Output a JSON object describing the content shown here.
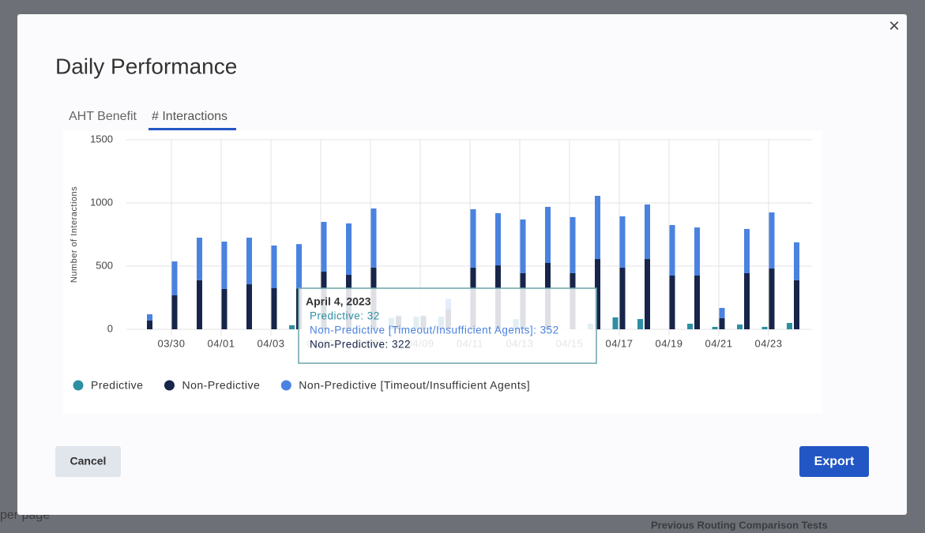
{
  "background": {
    "footer_left": "per page",
    "footer_right": "Previous Routing Comparison Tests"
  },
  "modal": {
    "title": "Daily Performance",
    "tabs": [
      "AHT Benefit",
      "# Interactions"
    ],
    "close": "×",
    "buttons": {
      "cancel": "Cancel",
      "export": "Export"
    }
  },
  "chart_data": {
    "type": "bar",
    "stacked": true,
    "y_label": "Number of Interactions",
    "categories": [
      null,
      "03/30",
      null,
      "04/01",
      null,
      "04/03",
      null,
      "04/05",
      null,
      "04/07",
      null,
      "04/09",
      null,
      "04/11",
      null,
      "04/13",
      null,
      "04/15",
      null,
      "04/17",
      null,
      "04/19",
      null,
      "04/21",
      null,
      "04/23",
      null
    ],
    "series": [
      {
        "name": "Predictive",
        "color": "#2e8fa3",
        "stack": "a",
        "values": [
          0,
          0,
          0,
          0,
          0,
          0,
          32,
          0,
          0,
          0,
          90,
          100,
          100,
          0,
          0,
          80,
          0,
          0,
          44,
          94,
          81,
          0,
          44,
          19,
          38,
          19,
          50
        ]
      },
      {
        "name": "Non-Predictive",
        "color": "#17254a",
        "stack": "b",
        "values": [
          69,
          269,
          388,
          319,
          356,
          325,
          322,
          456,
          431,
          488,
          100,
          100,
          160,
          488,
          506,
          444,
          525,
          444,
          556,
          488,
          556,
          425,
          425,
          88,
          444,
          481,
          388
        ]
      },
      {
        "name": "Non-Predictive [Timeout/Insufficient Agents]",
        "color": "#4a82e0",
        "stack": "b",
        "values": [
          50,
          268,
          337,
          375,
          369,
          338,
          352,
          394,
          407,
          468,
          10,
          10,
          80,
          462,
          413,
          425,
          444,
          444,
          500,
          406,
          432,
          400,
          381,
          81,
          350,
          444,
          300
        ]
      }
    ],
    "ylim": [
      0,
      1500
    ],
    "yticks": [
      0,
      500,
      1000,
      1500
    ],
    "grid": true,
    "legend": "bottom-left",
    "tooltip": {
      "title": "April 4, 2023",
      "lines": [
        "Predictive: 32",
        "Non-Predictive [Timeout/Insufficient Agents]: 352",
        "Non-Predictive: 322"
      ]
    }
  }
}
